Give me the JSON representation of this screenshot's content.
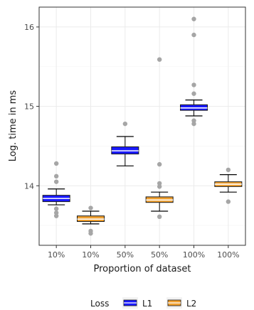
{
  "chart_data": {
    "type": "boxplot",
    "xlabel": "Proportion of dataset",
    "ylabel": "Log. time in ms",
    "categories": [
      "10%",
      "10%",
      "50%",
      "50%",
      "100%",
      "100%"
    ],
    "ylim": [
      13.25,
      16.25
    ],
    "yticks": [
      14,
      15,
      16
    ],
    "grid": true,
    "legend": {
      "title": "Loss",
      "position": "bottom",
      "entries": [
        {
          "label": "L1",
          "color": "#1a1aff"
        },
        {
          "label": "L2",
          "color": "#f0a030"
        }
      ]
    },
    "boxes": [
      {
        "category": "10%",
        "group": "L1",
        "whisker_low": 13.76,
        "q1": 13.8,
        "median": 13.84,
        "q3": 13.88,
        "whisker_high": 13.96,
        "outliers": [
          13.62,
          13.66,
          13.71,
          14.05,
          14.12,
          14.28
        ]
      },
      {
        "category": "10%",
        "group": "L2",
        "whisker_low": 13.52,
        "q1": 13.55,
        "median": 13.58,
        "q3": 13.62,
        "whisker_high": 13.68,
        "outliers": [
          13.4,
          13.43,
          13.72
        ]
      },
      {
        "category": "50%",
        "group": "L1",
        "whisker_low": 14.25,
        "q1": 14.4,
        "median": 14.44,
        "q3": 14.49,
        "whisker_high": 14.62,
        "outliers": [
          14.78
        ]
      },
      {
        "category": "50%",
        "group": "L2",
        "whisker_low": 13.68,
        "q1": 13.79,
        "median": 13.82,
        "q3": 13.86,
        "whisker_high": 13.92,
        "outliers": [
          13.61,
          13.99,
          14.03,
          14.27,
          15.59
        ]
      },
      {
        "category": "100%",
        "group": "L1",
        "whisker_low": 14.88,
        "q1": 14.95,
        "median": 14.98,
        "q3": 15.02,
        "whisker_high": 15.08,
        "outliers": [
          14.78,
          14.82,
          15.16,
          15.27,
          15.9,
          16.1
        ]
      },
      {
        "category": "100%",
        "group": "L2",
        "whisker_low": 13.92,
        "q1": 13.99,
        "median": 14.02,
        "q3": 14.05,
        "whisker_high": 14.14,
        "outliers": [
          13.8,
          14.2
        ]
      }
    ]
  }
}
